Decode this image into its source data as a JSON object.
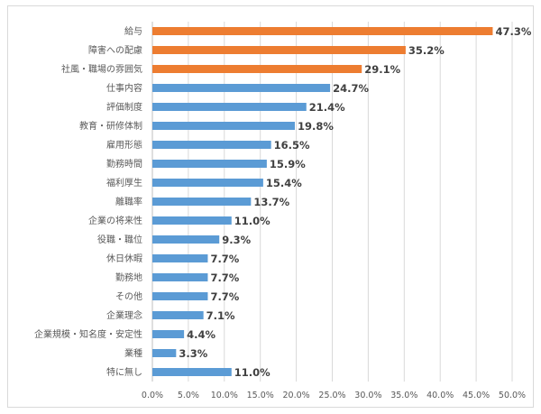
{
  "chart_data": {
    "type": "bar",
    "orientation": "horizontal",
    "title": "",
    "xlabel": "",
    "ylabel": "",
    "xlim": [
      0,
      50
    ],
    "x_ticks": [
      "0.0%",
      "5.0%",
      "10.0%",
      "15.0%",
      "20.0%",
      "25.0%",
      "30.0%",
      "35.0%",
      "40.0%",
      "45.0%",
      "50.0%"
    ],
    "grid": "vertical",
    "categories": [
      "給与",
      "障害への配慮",
      "社風・職場の雰囲気",
      "仕事内容",
      "評価制度",
      "教育・研修体制",
      "雇用形態",
      "勤務時間",
      "福利厚生",
      "離職率",
      "企業の将来性",
      "役職・職位",
      "休日休暇",
      "勤務地",
      "その他",
      "企業理念",
      "企業規模・知名度・安定性",
      "業種",
      "特に無し"
    ],
    "values": [
      47.3,
      35.2,
      29.1,
      24.7,
      21.4,
      19.8,
      16.5,
      15.9,
      15.4,
      13.7,
      11.0,
      9.3,
      7.7,
      7.7,
      7.7,
      7.1,
      4.4,
      3.3,
      11.0
    ],
    "value_labels": [
      "47.3%",
      "35.2%",
      "29.1%",
      "24.7%",
      "21.4%",
      "19.8%",
      "16.5%",
      "15.9%",
      "15.4%",
      "13.7%",
      "11.0%",
      "9.3%",
      "7.7%",
      "7.7%",
      "7.7%",
      "7.1%",
      "4.4%",
      "3.3%",
      "11.0%"
    ],
    "highlight_count": 3,
    "colors": {
      "highlight": "#ED7D31",
      "default": "#5B9BD5",
      "grid": "#d9d9d9"
    }
  }
}
